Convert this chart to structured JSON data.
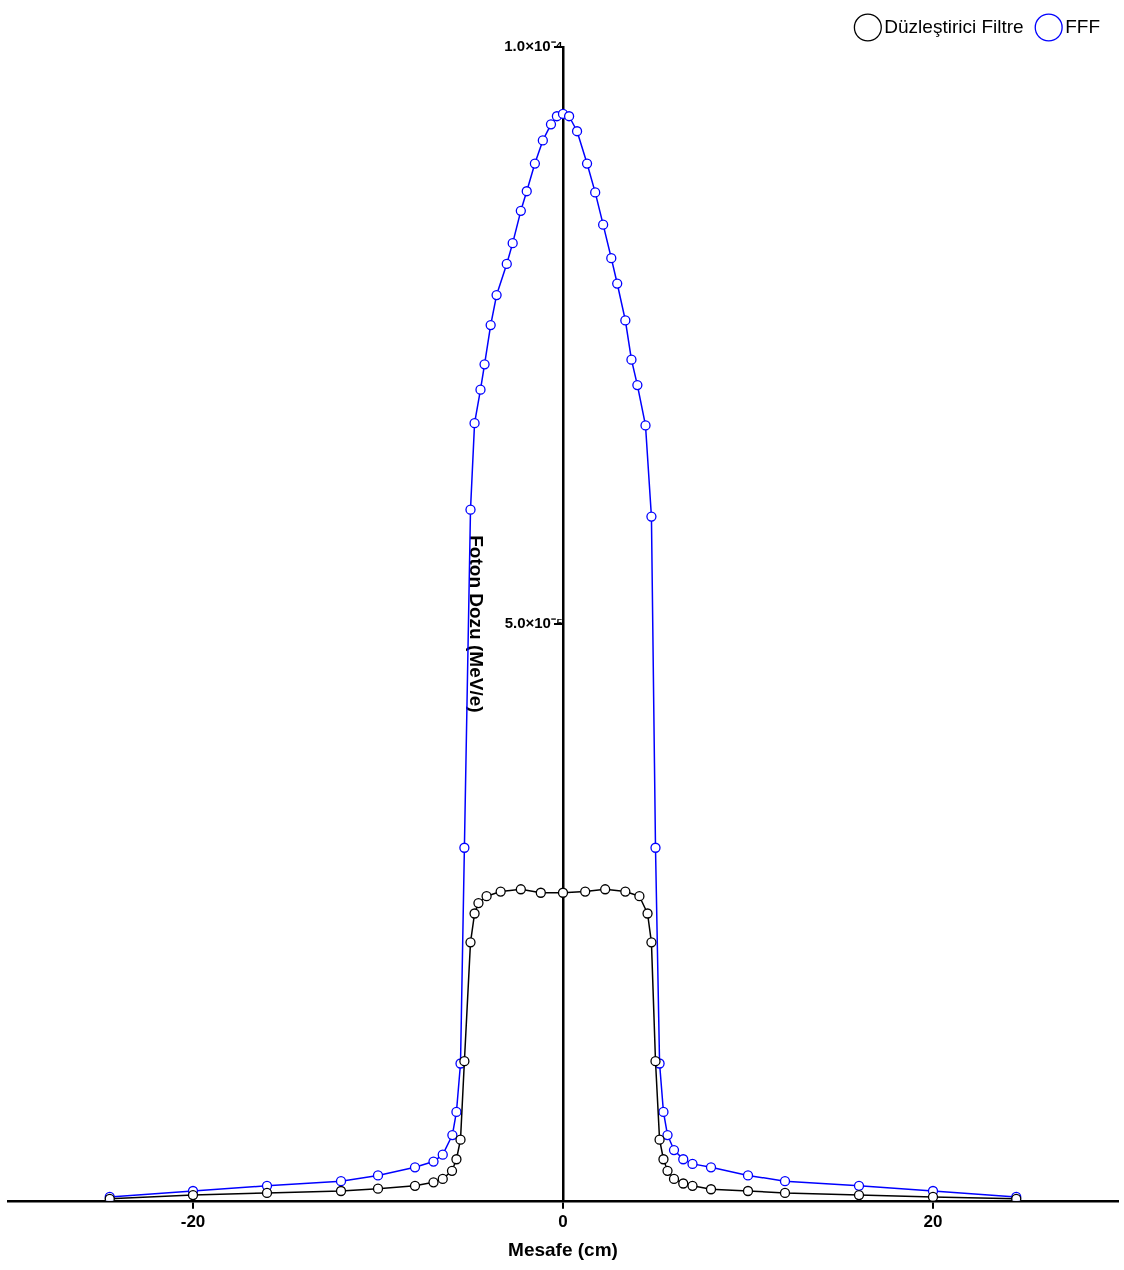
{
  "chart_data": {
    "type": "line",
    "xlabel": "Mesafe (cm)",
    "ylabel": "Foton Dozu (MeV/e)",
    "xlim": [
      -30,
      30
    ],
    "xticks": [
      -20,
      0,
      20
    ],
    "ylim": [
      0,
      0.0001
    ],
    "yticks": [
      {
        "value": 5e-05,
        "label": "5.0×10⁻⁵"
      },
      {
        "value": 0.0001,
        "label": "1.0×10⁻⁴"
      }
    ],
    "grid": false,
    "legend": "top right",
    "marker": "circle",
    "line_style": "solid",
    "series": [
      {
        "name": "Düzleştirici Filtre",
        "color": "#000000",
        "x": [
          -24.5,
          -20,
          -16,
          -12,
          -10,
          -8,
          -7,
          -6.5,
          -6,
          -5.76,
          -5.54,
          -5.33,
          -5,
          -4.78,
          -4.57,
          -4.13,
          -3.37,
          -2.28,
          -1.2,
          0,
          1.2,
          2.28,
          3.37,
          4.13,
          4.57,
          4.78,
          5,
          5.22,
          5.43,
          5.65,
          6,
          6.5,
          7,
          8,
          10,
          12,
          16,
          20,
          24.5
        ],
        "values": [
          1.7e-07,
          5e-07,
          6.8e-07,
          8.5e-07,
          1.05e-06,
          1.3e-06,
          1.6e-06,
          1.9e-06,
          2.6e-06,
          3.6e-06,
          5.3e-06,
          1.21e-05,
          2.24e-05,
          2.49e-05,
          2.58e-05,
          2.64e-05,
          2.68e-05,
          2.7e-05,
          2.67e-05,
          2.67e-05,
          2.68e-05,
          2.7e-05,
          2.68e-05,
          2.64e-05,
          2.49e-05,
          2.24e-05,
          1.21e-05,
          5.3e-06,
          3.6e-06,
          2.6e-06,
          1.9e-06,
          1.5e-06,
          1.3e-06,
          1e-06,
          8.5e-07,
          6.8e-07,
          5e-07,
          3.4e-07,
          1.7e-07
        ]
      },
      {
        "name": "FFF",
        "color": "#0000ff",
        "x": [
          -24.5,
          -20,
          -16,
          -12,
          -10,
          -8,
          -7,
          -6.5,
          -5.98,
          -5.76,
          -5.54,
          -5.33,
          -5,
          -4.78,
          -4.46,
          -4.24,
          -3.91,
          -3.59,
          -3.04,
          -2.72,
          -2.28,
          -1.96,
          -1.52,
          -1.09,
          -0.65,
          -0.33,
          0,
          0.33,
          0.76,
          1.3,
          1.74,
          2.17,
          2.61,
          2.93,
          3.37,
          3.7,
          4.02,
          4.46,
          4.78,
          5,
          5.22,
          5.43,
          5.65,
          6,
          6.5,
          7,
          8,
          10,
          12,
          16,
          20,
          24.5
        ],
        "values": [
          3.4e-07,
          8.5e-07,
          1.3e-06,
          1.7e-06,
          2.2e-06,
          2.9e-06,
          3.4e-06,
          4e-06,
          5.7e-06,
          7.7e-06,
          1.19e-05,
          3.06e-05,
          5.99e-05,
          6.74e-05,
          7.03e-05,
          7.25e-05,
          7.59e-05,
          7.85e-05,
          8.12e-05,
          8.3e-05,
          8.58e-05,
          8.75e-05,
          8.99e-05,
          9.19e-05,
          9.33e-05,
          9.4e-05,
          9.42e-05,
          9.4e-05,
          9.27e-05,
          8.99e-05,
          8.74e-05,
          8.46e-05,
          8.17e-05,
          7.95e-05,
          7.63e-05,
          7.29e-05,
          7.07e-05,
          6.72e-05,
          5.93e-05,
          3.06e-05,
          1.19e-05,
          7.7e-06,
          5.7e-06,
          4.4e-06,
          3.6e-06,
          3.2e-06,
          2.9e-06,
          2.2e-06,
          1.7e-06,
          1.3e-06,
          8.5e-07,
          3.4e-07
        ]
      }
    ]
  }
}
